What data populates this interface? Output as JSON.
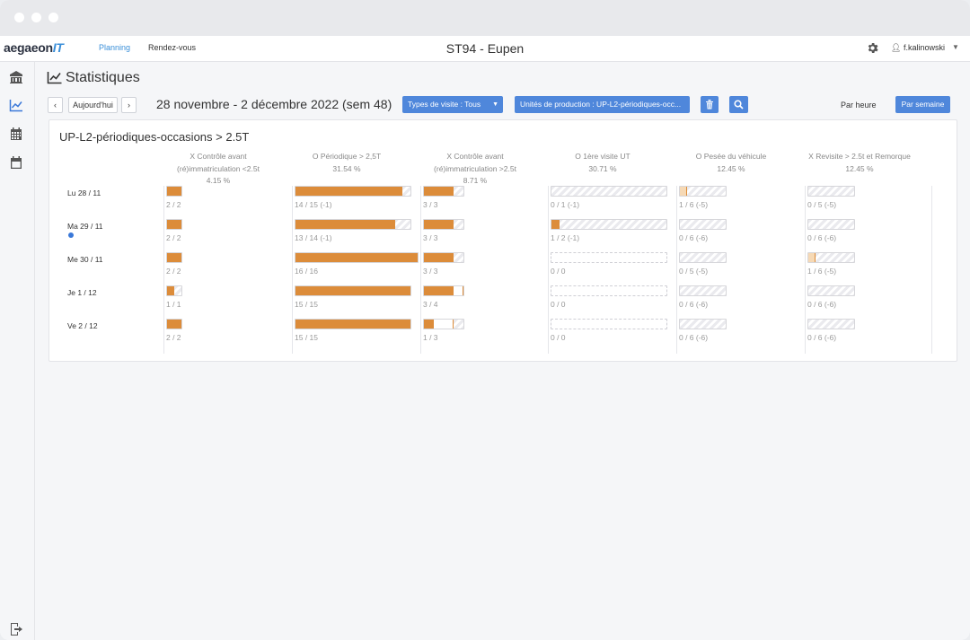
{
  "app": {
    "logo_main": "aegaeon",
    "logo_it": "IT",
    "nav": [
      "Planning",
      "Rendez-vous"
    ],
    "title": "ST94 - Eupen",
    "user": "f.kalinowski"
  },
  "page": {
    "title": "Statistiques",
    "today_button": "Aujourd'hui",
    "date_range": "28 novembre - 2 décembre 2022 (sem 48)",
    "filter_visit_types": "Types de visite : Tous",
    "filter_units": "Unités de production : UP-L2-périodiques-occ...",
    "view_hour": "Par heure",
    "view_week": "Par semaine"
  },
  "card": {
    "title": "UP-L2-périodiques-occasions > 2.5T",
    "columns": [
      {
        "line1": "X Contrôle avant",
        "line2": "(ré)immatriculation <2.5t",
        "pct": "4.15 %"
      },
      {
        "line1": "O Périodique > 2,5T",
        "line2": "",
        "pct": "31.54 %"
      },
      {
        "line1": "X Contrôle avant",
        "line2": "(ré)immatriculation >2.5t",
        "pct": "8.71 %"
      },
      {
        "line1": "O 1ère visite UT",
        "line2": "",
        "pct": "30.71 %"
      },
      {
        "line1": "O Pesée du véhicule",
        "line2": "",
        "pct": "12.45 %"
      },
      {
        "line1": "X Revisite > 2.5t et Remorque",
        "line2": "",
        "pct": "12.45 %"
      }
    ],
    "days": [
      "Lu 28 / 11",
      "Ma 29 / 11",
      "Me 30 / 11",
      "Je 1 / 12",
      "Ve 2 / 12"
    ],
    "cells": [
      [
        "2 / 2",
        "14 / 15  (-1)",
        "3 / 3",
        "0 / 1  (-1)",
        "1 / 6  (-5)",
        "0 / 5  (-5)"
      ],
      [
        "2 / 2",
        "13 / 14  (-1)",
        "3 / 3",
        "1 / 2  (-1)",
        "0 / 6  (-6)",
        "0 / 6  (-6)"
      ],
      [
        "2 / 2",
        "16 / 16",
        "3 / 3",
        "0 / 0",
        "0 / 5  (-5)",
        "1 / 6  (-5)"
      ],
      [
        "1 / 1",
        "15 / 15",
        "3 / 4",
        "0 / 0",
        "0 / 6  (-6)",
        "0 / 6  (-6)"
      ],
      [
        "2 / 2",
        "15 / 15",
        "1 / 3",
        "0 / 0",
        "0 / 6  (-6)",
        "0 / 6  (-6)"
      ]
    ]
  },
  "colors": {
    "accent": "#4f87db",
    "bar_fill": "#dc8c3a",
    "bar_light": "#f6d9b5"
  },
  "icons": [
    "building-icon",
    "chart-line-icon",
    "calendar-grid-icon",
    "calendar-icon",
    "logout-icon",
    "gear-icon",
    "user-icon",
    "chevron-left-icon",
    "chevron-right-icon",
    "trash-icon",
    "search-icon",
    "caret-down-icon"
  ]
}
